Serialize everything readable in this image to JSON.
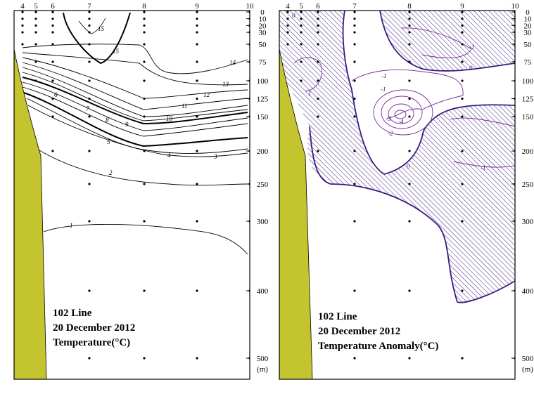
{
  "colors": {
    "land": "#C4C42E",
    "anomaly_zero": "#3D1A80",
    "anomaly_contour": "#7A2A9A",
    "hatch": "#4A3088"
  },
  "panels": [
    {
      "id": "temperature",
      "title_lines": [
        "102 Line",
        "20 December 2012",
        "Temperature(°C)"
      ]
    },
    {
      "id": "anomaly",
      "title_lines": [
        "102 Line",
        "20 December 2012",
        "Temperature Anomaly(°C)"
      ]
    }
  ],
  "chart_data": [
    {
      "type": "contour",
      "title": "102 Line 20 December 2012 Temperature(°C)",
      "stations": [
        "4",
        "5",
        "6",
        "7",
        "8",
        "9",
        "10"
      ],
      "depth_ticks": [
        0,
        10,
        20,
        30,
        50,
        75,
        100,
        125,
        150,
        200,
        250,
        300,
        400,
        500
      ],
      "depth_unit": "(m)",
      "ylim": [
        0,
        500
      ],
      "contour_labels": [
        "15",
        "15",
        "14",
        "13",
        "12",
        "11",
        "10",
        "9",
        "8",
        "7",
        "6",
        "5",
        "4",
        "3",
        "2",
        "1"
      ]
    },
    {
      "type": "contour",
      "title": "102 Line 20 December 2012 Temperature Anomaly(°C)",
      "stations": [
        "4",
        "5",
        "6",
        "7",
        "8",
        "9",
        "10"
      ],
      "depth_ticks": [
        0,
        10,
        20,
        30,
        50,
        75,
        100,
        125,
        150,
        200,
        250,
        300,
        400,
        500
      ],
      "depth_unit": "(m)",
      "ylim": [
        0,
        500
      ],
      "contour_labels": [
        "0",
        "0",
        "1",
        "-1",
        "-1",
        "0",
        "-1",
        "-2",
        "-3",
        "-4",
        "-1"
      ],
      "hatched": "positive anomaly"
    }
  ]
}
